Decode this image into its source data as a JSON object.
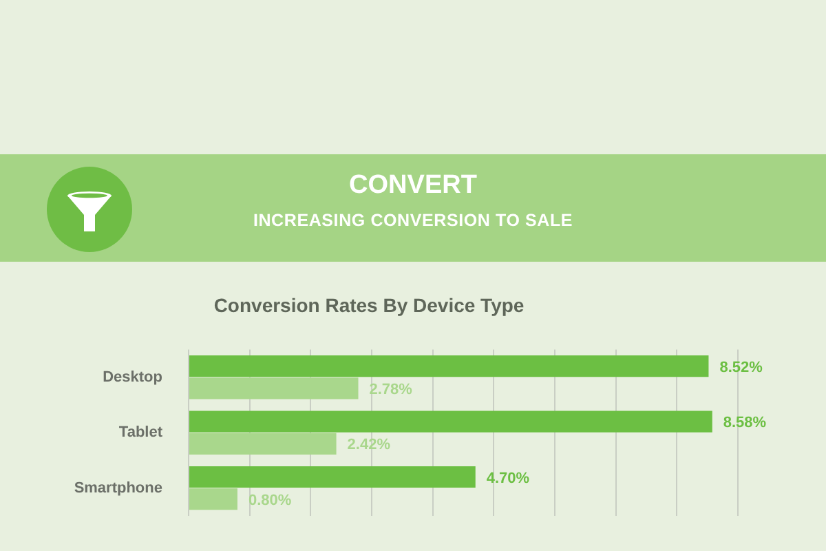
{
  "chart_data": {
    "type": "bar",
    "orientation": "horizontal",
    "title": "Conversion Rates By Device Type",
    "annotations": [
      "CONVERT",
      "INCREASING CONVERSION TO SALE"
    ],
    "categories": [
      "Desktop",
      "Tablet",
      "Smartphone"
    ],
    "series": [
      {
        "color": "#6cbf43",
        "values": [
          8.52,
          8.58,
          4.7
        ],
        "value_labels": [
          "8.52%",
          "8.58%",
          "4.70%"
        ]
      },
      {
        "color": "#a9d78c",
        "values": [
          2.78,
          2.42,
          0.8
        ],
        "value_labels": [
          "2.78%",
          "2.42%",
          "0.80%"
        ]
      }
    ],
    "xlim": [
      0,
      9
    ],
    "xticks": [
      {
        "value": 0,
        "label": null
      },
      {
        "value": 1,
        "label": null
      },
      {
        "value": 2,
        "label": null
      },
      {
        "value": 3,
        "label": null
      },
      {
        "value": 4,
        "label": null
      },
      {
        "value": 5,
        "label": null
      },
      {
        "value": 6,
        "label": null
      },
      {
        "value": 7,
        "label": null
      },
      {
        "value": 8,
        "label": null
      },
      {
        "value": 9,
        "label": null
      }
    ],
    "grid": "x",
    "legend": false,
    "tick_labels": "y"
  }
}
